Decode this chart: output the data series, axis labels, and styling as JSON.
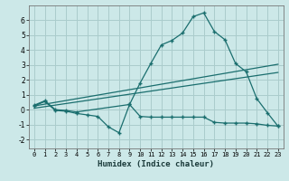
{
  "background_color": "#cce8e8",
  "grid_color": "#aacccc",
  "line_color": "#1a6e6e",
  "xlabel": "Humidex (Indice chaleur)",
  "xlim": [
    -0.5,
    23.5
  ],
  "ylim": [
    -2.6,
    7.0
  ],
  "yticks": [
    -2,
    -1,
    0,
    1,
    2,
    3,
    4,
    5,
    6
  ],
  "xticks": [
    0,
    1,
    2,
    3,
    4,
    5,
    6,
    7,
    8,
    9,
    10,
    11,
    12,
    13,
    14,
    15,
    16,
    17,
    18,
    19,
    20,
    21,
    22,
    23
  ],
  "series1_x": [
    0,
    1,
    2,
    3,
    4,
    9,
    10,
    11,
    12,
    13,
    14,
    15,
    16,
    17,
    18,
    19,
    20,
    21,
    22,
    23
  ],
  "series1_y": [
    0.3,
    0.6,
    0.0,
    -0.05,
    -0.15,
    0.35,
    1.8,
    3.1,
    4.35,
    4.65,
    5.15,
    6.25,
    6.5,
    5.25,
    4.7,
    3.1,
    2.55,
    0.75,
    -0.2,
    -1.1
  ],
  "series2_x": [
    0,
    1,
    2,
    3,
    4,
    5,
    6,
    7,
    8,
    9,
    10,
    11,
    12,
    13,
    14,
    15,
    16,
    17,
    18,
    19,
    20,
    21,
    22,
    23
  ],
  "series2_y": [
    0.25,
    0.55,
    -0.05,
    -0.1,
    -0.25,
    -0.35,
    -0.45,
    -1.15,
    -1.55,
    0.35,
    -0.45,
    -0.5,
    -0.5,
    -0.5,
    -0.5,
    -0.5,
    -0.5,
    -0.85,
    -0.9,
    -0.9,
    -0.9,
    -0.95,
    -1.05,
    -1.1
  ],
  "series3_x": [
    0,
    23
  ],
  "series3_y": [
    0.25,
    3.05
  ],
  "series4_x": [
    0,
    23
  ],
  "series4_y": [
    0.1,
    2.5
  ]
}
